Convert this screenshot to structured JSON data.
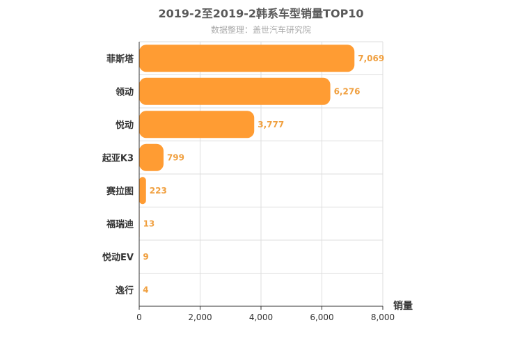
{
  "chart_data": {
    "type": "bar",
    "orientation": "horizontal",
    "title": "2019-2至2019-2韩系车型销量TOP10",
    "subtitle": "数据整理：盖世汽车研究院",
    "categories": [
      "菲斯塔",
      "领动",
      "悦动",
      "起亚K3",
      "赛拉图",
      "福瑞迪",
      "悦动EV",
      "逸行"
    ],
    "series": [
      {
        "values": [
          7069,
          6276,
          3777,
          799,
          223,
          13,
          9,
          4
        ]
      }
    ],
    "data_labels": [
      "7,069",
      "6,276",
      "3,777",
      "799",
      "223",
      "13",
      "9",
      "4"
    ],
    "xlabel": "销量",
    "ylabel": "",
    "xlim": [
      0,
      8000
    ],
    "x_ticks": [
      0,
      2000,
      4000,
      6000,
      8000
    ],
    "x_tick_labels": [
      "0",
      "2,000",
      "4,000",
      "6,000",
      "8,000"
    ],
    "grid": true,
    "colors": {
      "bar": "#ff9c33",
      "data_label": "#f0a040",
      "axis": "#333333",
      "grid": "#dddddd"
    }
  }
}
